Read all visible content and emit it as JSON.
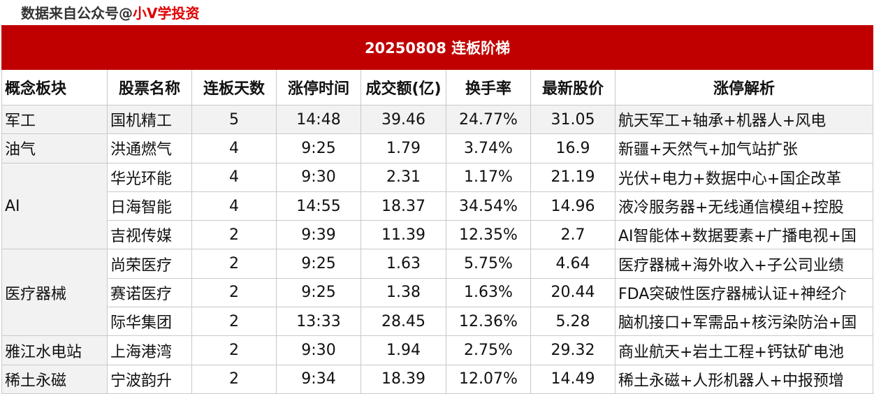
{
  "watermark": {
    "prefix": "数据来自公众号@",
    "name": "小V学投资"
  },
  "title": "20250808  连板阶梯",
  "columns": [
    "概念板块",
    "股票名称",
    "连板天数",
    "涨停时间",
    "成交额(亿)",
    "换手率",
    "最新股价",
    "涨停解析"
  ],
  "rows": [
    {
      "sector": "军工",
      "name": "国机精工",
      "days": "5",
      "time": "14:48",
      "amount": "39.46",
      "turnover": "24.77%",
      "price": "31.05",
      "analysis": "航天军工+轴承+机器人+风电"
    },
    {
      "sector": "油气",
      "name": "洪通燃气",
      "days": "4",
      "time": "9:25",
      "amount": "1.79",
      "turnover": "3.74%",
      "price": "16.9",
      "analysis": "新疆+天然气+加气站扩张"
    },
    {
      "sector": "AI",
      "name": "华光环能",
      "days": "4",
      "time": "9:30",
      "amount": "2.31",
      "turnover": "1.17%",
      "price": "21.19",
      "analysis": "光伏+电力+数据中心+国企改革"
    },
    {
      "sector": "AI",
      "name": "日海智能",
      "days": "4",
      "time": "14:55",
      "amount": "18.37",
      "turnover": "34.54%",
      "price": "14.96",
      "analysis": "液冷服务器+无线通信模组+控股"
    },
    {
      "sector": "AI",
      "name": "吉视传媒",
      "days": "2",
      "time": "9:39",
      "amount": "11.39",
      "turnover": "12.35%",
      "price": "2.7",
      "analysis": "AI智能体+数据要素+广播电视+国"
    },
    {
      "sector": "医疗器械",
      "name": "尚荣医疗",
      "days": "2",
      "time": "9:25",
      "amount": "1.63",
      "turnover": "5.75%",
      "price": "4.64",
      "analysis": "医疗器械+海外收入+子公司业绩"
    },
    {
      "sector": "医疗器械",
      "name": "赛诺医疗",
      "days": "2",
      "time": "9:25",
      "amount": "1.38",
      "turnover": "1.63%",
      "price": "20.44",
      "analysis": "FDA突破性医疗器械认证+神经介"
    },
    {
      "sector": "医疗器械",
      "name": "际华集团",
      "days": "2",
      "time": "13:33",
      "amount": "28.45",
      "turnover": "12.36%",
      "price": "5.28",
      "analysis": "脑机接口+军需品+核污染防治+国"
    },
    {
      "sector": "雅江水电站",
      "name": "上海港湾",
      "days": "2",
      "time": "9:30",
      "amount": "1.94",
      "turnover": "2.75%",
      "price": "29.32",
      "analysis": "商业航天+岩土工程+钙钛矿电池"
    },
    {
      "sector": "稀土永磁",
      "name": "宁波韵升",
      "days": "2",
      "time": "9:34",
      "amount": "18.39",
      "turnover": "12.07%",
      "price": "14.49",
      "analysis": "稀土永磁+人形机器人+中报预增"
    }
  ]
}
